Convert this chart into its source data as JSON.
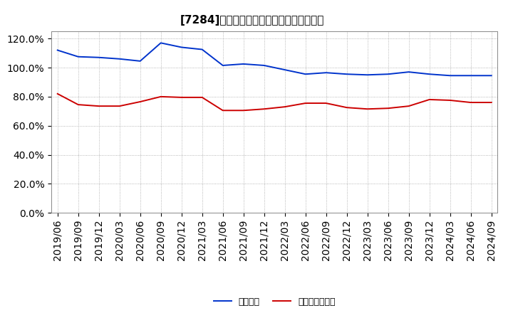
{
  "title": "[7284]　固定比率、固定長期適合率の推移",
  "x_labels": [
    "2019/06",
    "2019/09",
    "2019/12",
    "2020/03",
    "2020/06",
    "2020/09",
    "2020/12",
    "2021/03",
    "2021/06",
    "2021/09",
    "2021/12",
    "2022/03",
    "2022/06",
    "2022/09",
    "2022/12",
    "2023/03",
    "2023/06",
    "2023/09",
    "2023/12",
    "2024/03",
    "2024/06",
    "2024/09"
  ],
  "fixed_ratio": [
    112.0,
    107.5,
    107.0,
    106.0,
    104.5,
    117.0,
    114.0,
    112.5,
    101.5,
    102.5,
    101.5,
    98.5,
    95.5,
    96.5,
    95.5,
    95.0,
    95.5,
    97.0,
    95.5,
    94.5,
    94.5,
    94.5
  ],
  "fixed_long_ratio": [
    82.0,
    74.5,
    73.5,
    73.5,
    76.5,
    80.0,
    79.5,
    79.5,
    70.5,
    70.5,
    71.5,
    73.0,
    75.5,
    75.5,
    72.5,
    71.5,
    72.0,
    73.5,
    78.0,
    77.5,
    76.0,
    76.0
  ],
  "line1_color": "#0033cc",
  "line2_color": "#cc0000",
  "legend1": "固定比率",
  "legend2": "固定長期適合率",
  "ylim": [
    0,
    125
  ],
  "yticks": [
    0,
    20,
    40,
    60,
    80,
    100,
    120
  ],
  "ytick_labels": [
    "0.0%",
    "20.0%",
    "40.0%",
    "60.0%",
    "80.0%",
    "100.0%",
    "120.0%"
  ],
  "bg_color": "#ffffff",
  "plot_bg_color": "#ffffff",
  "grid_color": "#999999",
  "title_fontsize": 11,
  "tick_fontsize": 7.5,
  "legend_fontsize": 9
}
